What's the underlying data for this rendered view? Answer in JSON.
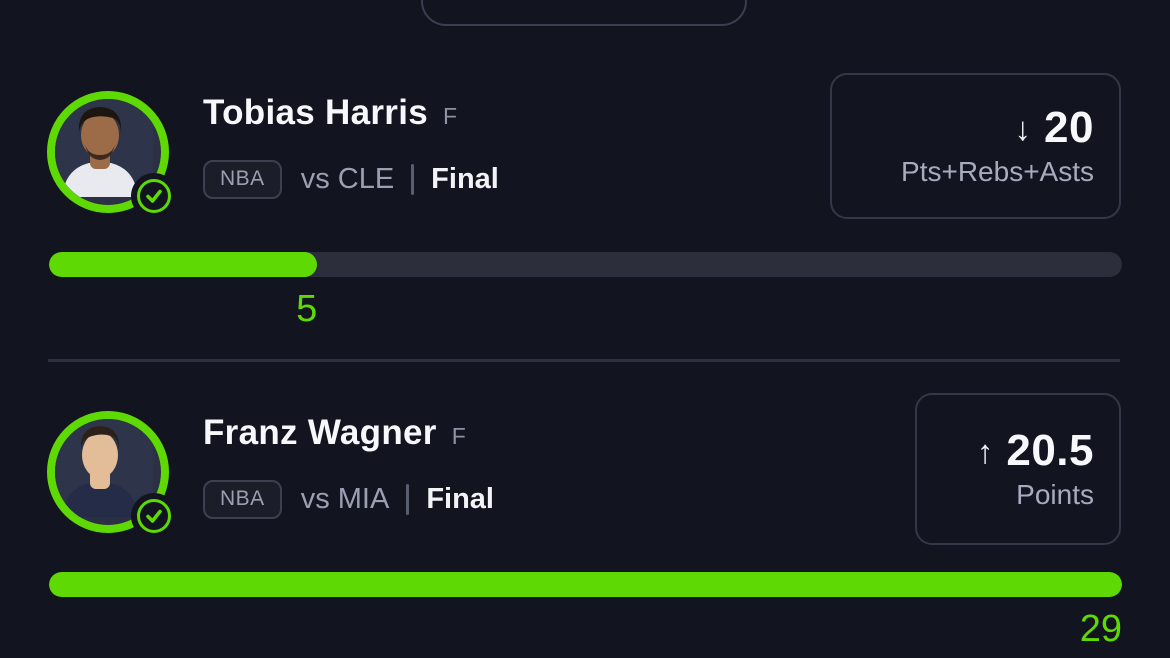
{
  "page": {
    "background_color": "#12141f",
    "accent_green": "#5ed903",
    "track_color": "#2c2e3b"
  },
  "players": [
    {
      "name": "Tobias Harris",
      "position": "F",
      "league_badge": "NBA",
      "matchup": "vs CLE",
      "status": "Final",
      "pick": {
        "direction": "lower",
        "arrow": "↓",
        "line": "20",
        "stat": "Pts+Rebs+Asts"
      },
      "progress": {
        "current": "5",
        "percent": 25
      }
    },
    {
      "name": "Franz Wagner",
      "position": "F",
      "league_badge": "NBA",
      "matchup": "vs MIA",
      "status": "Final",
      "pick": {
        "direction": "higher",
        "arrow": "↑",
        "line": "20.5",
        "stat": "Points"
      },
      "progress": {
        "current": "29",
        "percent": 100
      }
    }
  ]
}
